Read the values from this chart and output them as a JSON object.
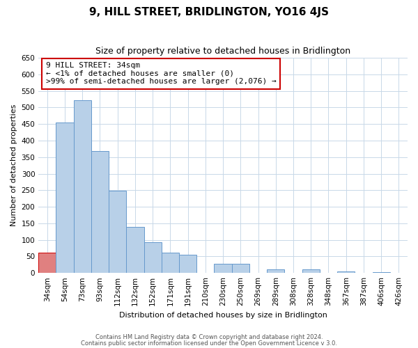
{
  "title": "9, HILL STREET, BRIDLINGTON, YO16 4JS",
  "subtitle": "Size of property relative to detached houses in Bridlington",
  "xlabel": "Distribution of detached houses by size in Bridlington",
  "ylabel": "Number of detached properties",
  "bin_labels": [
    "34sqm",
    "54sqm",
    "73sqm",
    "93sqm",
    "112sqm",
    "132sqm",
    "152sqm",
    "171sqm",
    "191sqm",
    "210sqm",
    "230sqm",
    "250sqm",
    "269sqm",
    "289sqm",
    "308sqm",
    "328sqm",
    "348sqm",
    "367sqm",
    "387sqm",
    "406sqm",
    "426sqm"
  ],
  "bar_values": [
    62,
    455,
    522,
    369,
    248,
    140,
    93,
    61,
    55,
    0,
    27,
    27,
    0,
    10,
    0,
    10,
    0,
    5,
    0,
    3,
    0
  ],
  "bar_color": "#b8d0e8",
  "bar_edge_color": "#6699cc",
  "highlight_bar_index": 0,
  "highlight_bar_color": "#e08080",
  "highlight_bar_edge_color": "#cc0000",
  "ylim": [
    0,
    650
  ],
  "yticks": [
    0,
    50,
    100,
    150,
    200,
    250,
    300,
    350,
    400,
    450,
    500,
    550,
    600,
    650
  ],
  "annotation_title": "9 HILL STREET: 34sqm",
  "annotation_line1": "← <1% of detached houses are smaller (0)",
  "annotation_line2": ">99% of semi-detached houses are larger (2,076) →",
  "annotation_box_color": "#ffffff",
  "annotation_box_edge_color": "#cc0000",
  "footer_line1": "Contains HM Land Registry data © Crown copyright and database right 2024.",
  "footer_line2": "Contains public sector information licensed under the Open Government Licence v 3.0.",
  "bg_color": "#ffffff",
  "grid_color": "#c8d8e8",
  "title_fontsize": 11,
  "subtitle_fontsize": 9,
  "axis_label_fontsize": 8,
  "tick_fontsize": 7.5,
  "annotation_fontsize": 8,
  "footer_fontsize": 6
}
